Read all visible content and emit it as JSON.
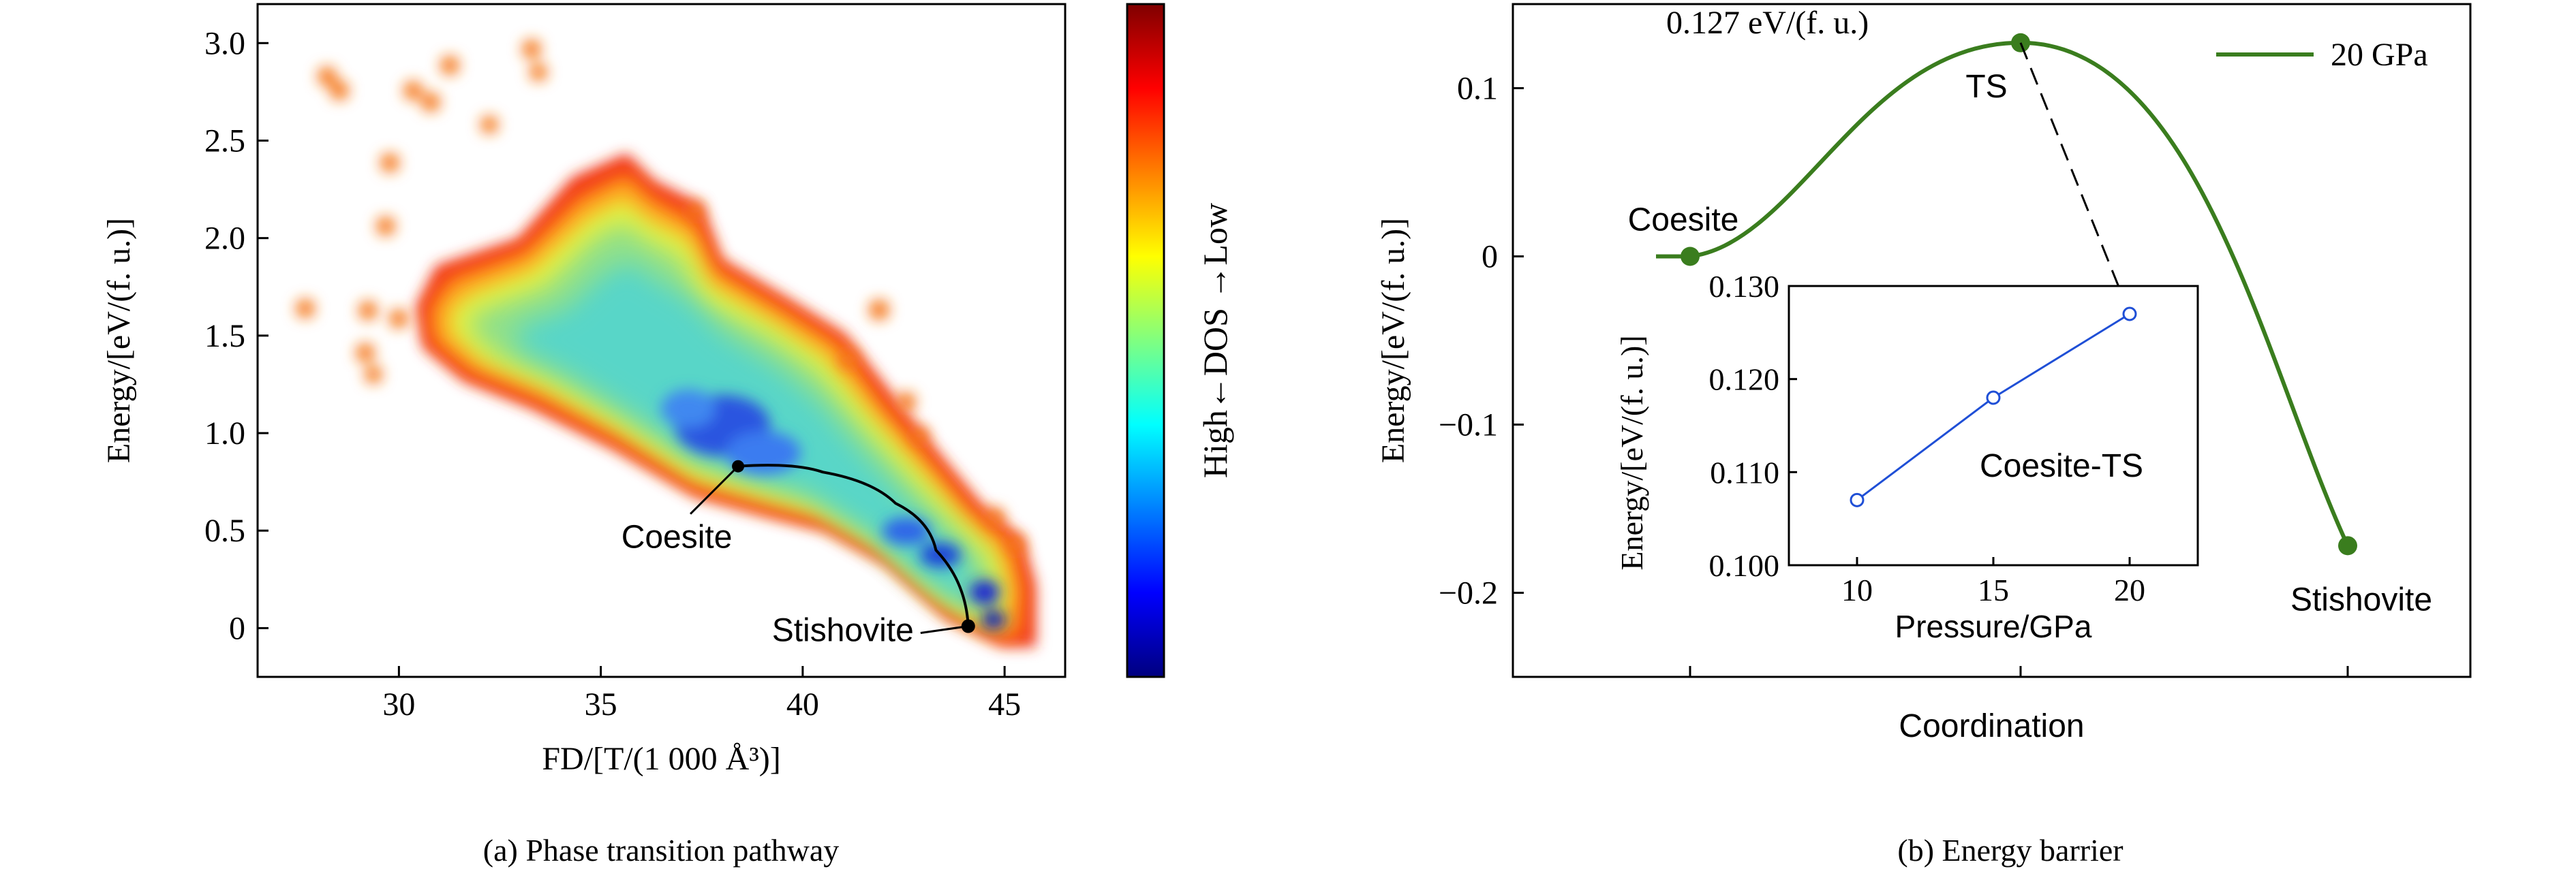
{
  "chart_data": [
    {
      "type": "heatmap",
      "caption": "(a) Phase transition pathway",
      "xlabel": "FD/[T/(1 000 Å³)]",
      "ylabel": "Energy/[eV/(f. u.)]",
      "xlim": [
        26.5,
        46.5
      ],
      "ylim": [
        -0.25,
        3.2
      ],
      "xticks": [
        30,
        35,
        40,
        45
      ],
      "yticks": [
        0,
        0.5,
        1.0,
        1.5,
        2.0,
        2.5,
        3.0
      ],
      "yticklabels": [
        "0",
        "0.5",
        "1.0",
        "1.5",
        "2.0",
        "2.5",
        "3.0"
      ],
      "colorbar": {
        "label": "High←DOS →Low",
        "colors": [
          "#00007f",
          "#0000ff",
          "#0080ff",
          "#00ffff",
          "#80ff80",
          "#ffff00",
          "#ff8000",
          "#ff0000",
          "#7f0000"
        ]
      },
      "annotations": [
        {
          "text": "Coesite",
          "x": 38.4,
          "y": 0.83
        },
        {
          "text": "Stishovite",
          "x": 44.1,
          "y": 0.01
        }
      ],
      "pathway": {
        "x": [
          38.4,
          40.5,
          42.3,
          43.3,
          44.1
        ],
        "y": [
          0.83,
          0.8,
          0.64,
          0.4,
          0.01
        ]
      }
    },
    {
      "type": "line",
      "caption": "(b) Energy barrier",
      "xlabel": "Coordination",
      "ylabel": "Energy/[eV/(f. u.)]",
      "ylim": [
        -0.25,
        0.15
      ],
      "yticks": [
        -0.2,
        -0.1,
        0,
        0.1
      ],
      "yticklabels": [
        "−0.2",
        "−0.1",
        "0",
        "0.1"
      ],
      "legend": {
        "position": "top-right",
        "entries": [
          "20 GPa"
        ]
      },
      "series": [
        {
          "name": "20 GPa",
          "color": "#3a7d1e",
          "points": [
            {
              "label": "Coesite",
              "y": 0
            },
            {
              "label": "TS",
              "y": 0.127
            },
            {
              "label": "Stishovite",
              "y": -0.172
            }
          ]
        }
      ],
      "annotation": "0.127 eV/(f. u.)",
      "inset": {
        "type": "line",
        "xlabel": "Pressure/GPa",
        "ylabel": "Energy/[eV/(f. u.)]",
        "xlim": [
          7.5,
          22.5
        ],
        "ylim": [
          0.1,
          0.13
        ],
        "xticks": [
          10,
          15,
          20
        ],
        "yticks": [
          0.1,
          0.11,
          0.12,
          0.13
        ],
        "yticklabels": [
          "0.100",
          "0.110",
          "0.120",
          "0.130"
        ],
        "color": "#1f4fd6",
        "series_label": "Coesite-TS",
        "x": [
          10,
          15,
          20
        ],
        "y": [
          0.107,
          0.118,
          0.127
        ]
      }
    }
  ]
}
